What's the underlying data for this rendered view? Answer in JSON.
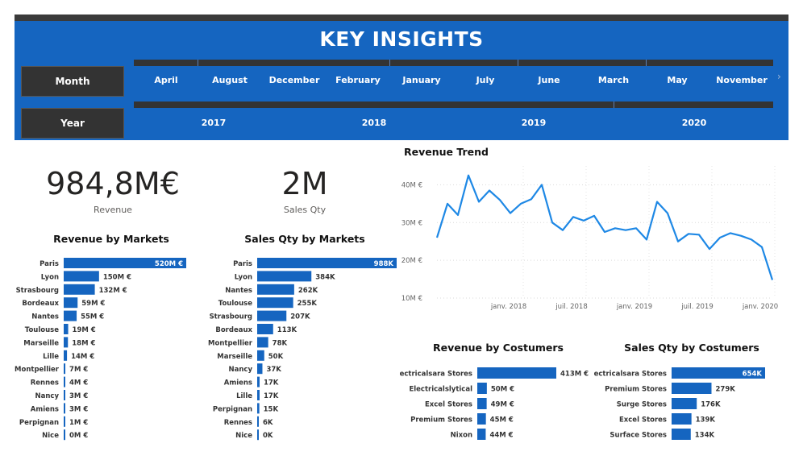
{
  "header": {
    "title": "KEY INSIGHTS"
  },
  "slicers": {
    "month": {
      "label": "Month",
      "items": [
        "April",
        "August",
        "December",
        "February",
        "January",
        "July",
        "June",
        "March",
        "May",
        "November"
      ]
    },
    "year": {
      "label": "Year",
      "items": [
        "2017",
        "2018",
        "2019",
        "2020"
      ]
    }
  },
  "kpis": {
    "revenue": {
      "value": "984,8M€",
      "label": "Revenue"
    },
    "sales_qty": {
      "value": "2M",
      "label": "Sales Qty"
    }
  },
  "chart_data": [
    {
      "type": "bar",
      "title": "Revenue by Markets",
      "categories": [
        "Paris",
        "Lyon",
        "Strasbourg",
        "Bordeaux",
        "Nantes",
        "Toulouse",
        "Marseille",
        "Lille",
        "Montpellier",
        "Rennes",
        "Nancy",
        "Amiens",
        "Perpignan",
        "Nice"
      ],
      "values": [
        520,
        150,
        132,
        59,
        55,
        19,
        18,
        14,
        7,
        4,
        3,
        3,
        1,
        0
      ],
      "data_labels": [
        "520M €",
        "150M €",
        "132M €",
        "59M €",
        "55M €",
        "19M €",
        "18M €",
        "14M €",
        "7M €",
        "4M €",
        "3M €",
        "3M €",
        "1M €",
        "0M €"
      ],
      "color": "#1565c0"
    },
    {
      "type": "bar",
      "title": "Sales Qty by Markets",
      "categories": [
        "Paris",
        "Lyon",
        "Nantes",
        "Toulouse",
        "Strasbourg",
        "Bordeaux",
        "Montpellier",
        "Marseille",
        "Nancy",
        "Amiens",
        "Lille",
        "Perpignan",
        "Rennes",
        "Nice"
      ],
      "values": [
        988,
        384,
        262,
        255,
        207,
        113,
        78,
        50,
        37,
        17,
        17,
        15,
        6,
        0
      ],
      "data_labels": [
        "988K",
        "384K",
        "262K",
        "255K",
        "207K",
        "113K",
        "78K",
        "50K",
        "37K",
        "17K",
        "17K",
        "15K",
        "6K",
        "0K"
      ],
      "color": "#1565c0"
    },
    {
      "type": "line",
      "title": "Revenue Trend",
      "y_ticks": [
        "10M €",
        "20M €",
        "30M €",
        "40M €"
      ],
      "ylim": [
        10,
        45
      ],
      "x_tick_labels": [
        "janv. 2018",
        "juil. 2018",
        "janv. 2019",
        "juil. 2019",
        "janv. 2020"
      ],
      "values": [
        26,
        35,
        32,
        42.5,
        35.5,
        38.5,
        36,
        32.5,
        35,
        36.2,
        40,
        30,
        28,
        31.5,
        30.5,
        31.8,
        27.5,
        28.5,
        28,
        28.5,
        25.5,
        35.5,
        32.5,
        25,
        27,
        26.8,
        23,
        26,
        27.2,
        26.5,
        25.5,
        23.5,
        14.8
      ],
      "color": "#1e88e5"
    },
    {
      "type": "bar",
      "title": "Revenue by Costumers",
      "categories": [
        "Electricalsara Stores",
        "Electricalslytical",
        "Excel Stores",
        "Premium Stores",
        "Nixon"
      ],
      "values": [
        413,
        50,
        49,
        45,
        44
      ],
      "data_labels": [
        "413M €",
        "50M €",
        "49M €",
        "45M €",
        "44M €"
      ],
      "color": "#1565c0"
    },
    {
      "type": "bar",
      "title": "Sales Qty by Costumers",
      "categories": [
        "Electricalsara Stores",
        "Premium Stores",
        "Surge Stores",
        "Excel Stores",
        "Surface Stores"
      ],
      "values": [
        654,
        279,
        176,
        139,
        134
      ],
      "data_labels": [
        "654K",
        "279K",
        "176K",
        "139K",
        "134K"
      ],
      "color": "#1565c0"
    }
  ]
}
